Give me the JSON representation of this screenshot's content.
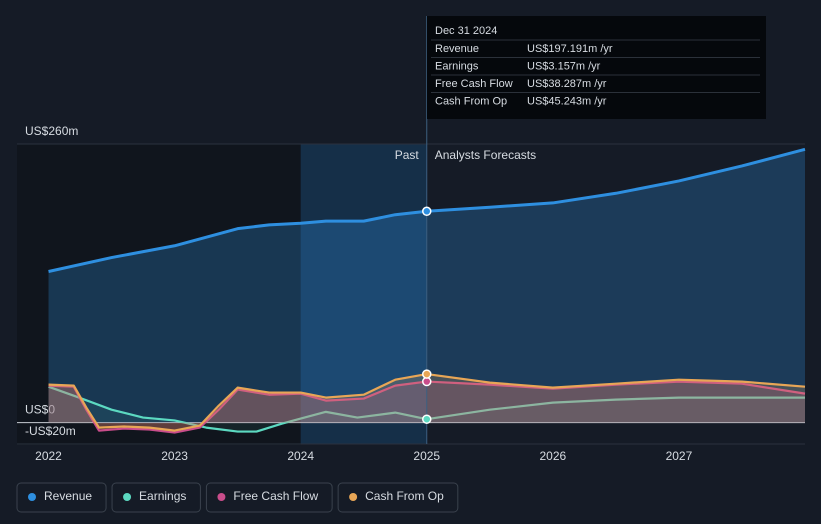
{
  "chart_data": {
    "type": "line",
    "annotations": {
      "past": "Past",
      "forecast": "Analysts Forecasts"
    },
    "highlight_xlim": [
      2024.0,
      2025.0
    ],
    "xlim": [
      2021.75,
      2028.0
    ],
    "xticks": [
      2022,
      2023,
      2024,
      2025,
      2026,
      2027
    ],
    "ylim": [
      -20,
      260
    ],
    "yticks": [
      {
        "value": 260,
        "label": "US$260m"
      },
      {
        "value": 0,
        "label": "US$0"
      },
      {
        "value": -20,
        "label": "-US$20m"
      }
    ],
    "grid": true,
    "legend": "bottom-left",
    "tooltip": {
      "title": "Dec 31 2024",
      "x": 2025.0,
      "rows": [
        {
          "label": "Revenue",
          "value": "US$197.191m",
          "unit": "/yr"
        },
        {
          "label": "Earnings",
          "value": "US$3.157m",
          "unit": "/yr"
        },
        {
          "label": "Free Cash Flow",
          "value": "US$38.287m",
          "unit": "/yr"
        },
        {
          "label": "Cash From Op",
          "value": "US$45.243m",
          "unit": "/yr"
        }
      ]
    },
    "series": [
      {
        "name": "Revenue",
        "color": "#2e8fe0",
        "x": [
          2022.0,
          2022.5,
          2023.0,
          2023.5,
          2023.75,
          2024.0,
          2024.2,
          2024.5,
          2024.75,
          2025.0,
          2025.5,
          2026.0,
          2026.5,
          2027.0,
          2027.5,
          2028.0
        ],
        "values": [
          141,
          154,
          165,
          181,
          184.5,
          186,
          188,
          188,
          194,
          197.191,
          201,
          205,
          214,
          225.5,
          239.5,
          255
        ]
      },
      {
        "name": "Earnings",
        "color": "#5cd9c1",
        "x": [
          2022.0,
          2022.25,
          2022.5,
          2022.75,
          2023.0,
          2023.25,
          2023.5,
          2023.65,
          2023.85,
          2024.0,
          2024.2,
          2024.45,
          2024.75,
          2025.0,
          2025.5,
          2026.0,
          2026.5,
          2027.0,
          2028.0
        ],
        "values": [
          33.5,
          23,
          12,
          4.7,
          2,
          -4.7,
          -8.4,
          -8.4,
          -1,
          3.7,
          10,
          4.7,
          9.3,
          3.157,
          12,
          18.6,
          21.4,
          23.3,
          23.3
        ]
      },
      {
        "name": "Free Cash Flow",
        "color": "#c94d8b",
        "x": [
          2022.0,
          2022.2,
          2022.3,
          2022.4,
          2022.6,
          2022.8,
          2023.0,
          2023.2,
          2023.35,
          2023.5,
          2023.75,
          2024.0,
          2024.2,
          2024.5,
          2024.75,
          2025.0,
          2025.5,
          2026.0,
          2026.5,
          2027.0,
          2027.5,
          2028.0
        ],
        "values": [
          34.5,
          33.5,
          12,
          -7.5,
          -5.6,
          -6.5,
          -9.3,
          -4.7,
          12,
          30.8,
          26,
          27,
          20.5,
          22.4,
          34.5,
          38.287,
          35.4,
          31.7,
          35.4,
          38.2,
          36.3,
          27
        ]
      },
      {
        "name": "Cash From Op",
        "color": "#e8a656",
        "x": [
          2022.0,
          2022.2,
          2022.3,
          2022.4,
          2022.6,
          2022.8,
          2023.0,
          2023.2,
          2023.35,
          2023.5,
          2023.75,
          2024.0,
          2024.2,
          2024.5,
          2024.75,
          2025.0,
          2025.5,
          2026.0,
          2026.5,
          2027.0,
          2027.5,
          2028.0
        ],
        "values": [
          35.4,
          34.5,
          14,
          -4.7,
          -3.7,
          -4.7,
          -7.5,
          -2.8,
          15.8,
          32.6,
          28,
          28,
          23.3,
          26,
          40,
          45.243,
          37.3,
          32.6,
          36.3,
          40,
          38.2,
          33.5
        ]
      }
    ]
  }
}
